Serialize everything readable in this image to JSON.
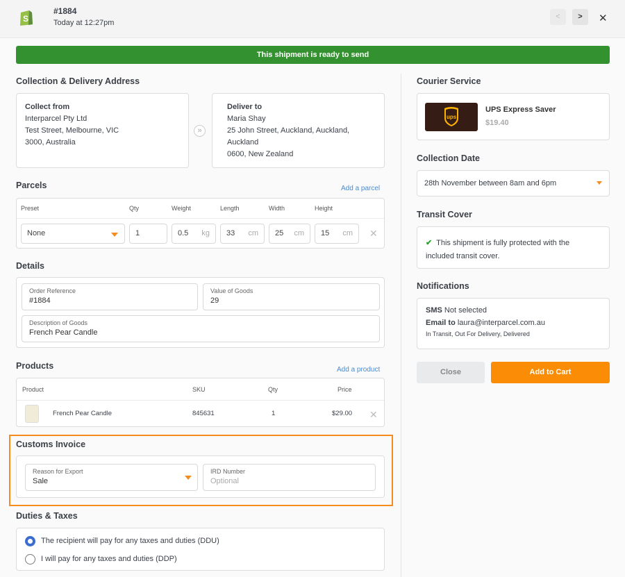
{
  "header": {
    "order": "#1884",
    "time": "Today at 12:27pm",
    "prev": "<",
    "next": ">",
    "close": "✕"
  },
  "banner": "This shipment is ready to send",
  "address": {
    "title": "Collection & Delivery Address",
    "from_title": "Collect from",
    "from_lines": [
      "Interparcel Pty Ltd",
      "Test Street, Melbourne, VIC",
      "3000, Australia"
    ],
    "to_title": "Deliver to",
    "to_lines": [
      "Maria Shay",
      "25 John Street, Auckland, Auckland,",
      "Auckland",
      "0600, New Zealand"
    ],
    "arrow": "»"
  },
  "parcels": {
    "title": "Parcels",
    "add": "Add a parcel",
    "headers": [
      "Preset",
      "Qty",
      "Weight",
      "Length",
      "Width",
      "Height"
    ],
    "preset": "None",
    "qty": "1",
    "weight": "0.5",
    "weight_unit": "kg",
    "length": "33",
    "width": "25",
    "height": "15",
    "dim_unit": "cm"
  },
  "details": {
    "title": "Details",
    "order_ref_label": "Order Reference",
    "order_ref": "#1884",
    "value_label": "Value of Goods",
    "value": "29",
    "desc_label": "Description of Goods",
    "desc": "French Pear Candle"
  },
  "products": {
    "title": "Products",
    "add": "Add a product",
    "headers": [
      "Product",
      "SKU",
      "Qty",
      "Price"
    ],
    "rows": [
      {
        "name": "French Pear Candle",
        "sku": "845631",
        "qty": "1",
        "price": "$29.00"
      }
    ]
  },
  "customs": {
    "title": "Customs Invoice",
    "reason_label": "Reason for Export",
    "reason": "Sale",
    "ird_label": "IRD Number",
    "ird_placeholder": "Optional",
    "highlight": "#f68b1e"
  },
  "duties": {
    "title": "Duties & Taxes",
    "options": [
      "The recipient will pay for any taxes and duties (DDU)",
      "I will pay for any taxes and duties (DDP)"
    ],
    "selected": 0
  },
  "courier": {
    "title": "Courier Service",
    "name": "UPS Express Saver",
    "price": "$19.40",
    "logo": "ups"
  },
  "collection": {
    "title": "Collection Date",
    "value": "28th November between 8am and 6pm"
  },
  "transit": {
    "title": "Transit Cover",
    "text1": "This shipment is fully protected with the",
    "text2": "included transit cover."
  },
  "notifications": {
    "title": "Notifications",
    "sms_label": "SMS",
    "sms_value": "Not selected",
    "email_label": "Email to",
    "email_value": "laura@interparcel.com.au",
    "events": "In Transit, Out For Delivery, Delivered"
  },
  "actions": {
    "close": "Close",
    "add_to_cart": "Add to Cart"
  },
  "colors": {
    "green": "#33922f",
    "orange": "#f68b1e",
    "link": "#4a8bd0"
  }
}
